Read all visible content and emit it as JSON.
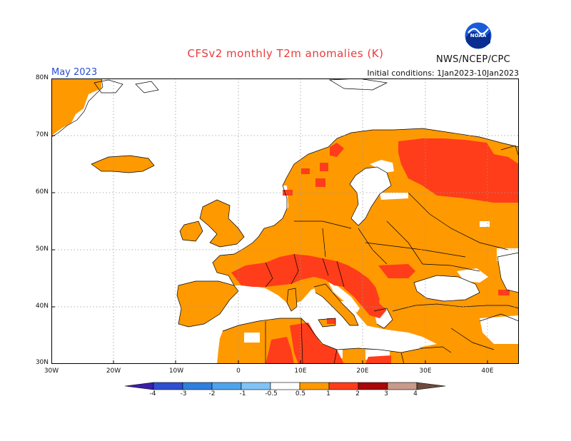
{
  "title": "CFSv2 monthly T2m anomalies (K)",
  "agency": "NWS/NCEP/CPC",
  "logo": {
    "icon": "noaa-logo-icon",
    "text": "NOAA"
  },
  "month_label": "May 2023",
  "initial_conditions": "Initial conditions: 1Jan2023-10Jan2023",
  "map": {
    "lon_range": [
      -30,
      45
    ],
    "lat_range": [
      30,
      80
    ],
    "grid": true,
    "y_ticks": [
      "80N",
      "70N",
      "60N",
      "50N",
      "40N",
      "30N"
    ],
    "x_ticks": [
      "30W",
      "20W",
      "10W",
      "0",
      "10E",
      "20E",
      "30E",
      "40E"
    ]
  },
  "colorbar": {
    "labels": [
      "-4",
      "-3",
      "-2",
      "-1",
      "-0.5",
      "0.5",
      "1",
      "2",
      "3",
      "4"
    ],
    "colors": [
      "#3b1fa8",
      "#2d4fd0",
      "#2f7fdc",
      "#4ea3ec",
      "#80c4f7",
      "#ffffff",
      "#ff9900",
      "#ff3d1a",
      "#a80808",
      "#c89a8a",
      "#6e4a3c"
    ]
  },
  "anomaly_colors": {
    "0.5-1": "#ff9900",
    "1-2": "#ff3d1a"
  }
}
